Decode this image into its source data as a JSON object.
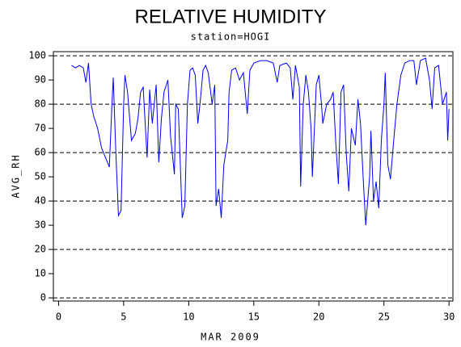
{
  "chart_data": {
    "type": "line",
    "title": "RELATIVE HUMIDITY",
    "subtitle": "station=HOGI",
    "xlabel": "MAR 2009",
    "ylabel": "AVG_RH",
    "xlim": [
      -0.4,
      30.3
    ],
    "ylim": [
      -1.3,
      101.7
    ],
    "xticks": [
      0,
      5,
      10,
      15,
      20,
      25,
      30
    ],
    "yticks": [
      0,
      10,
      20,
      30,
      40,
      50,
      60,
      70,
      80,
      90,
      100
    ],
    "grid_lines": [
      0,
      20,
      40,
      60,
      80,
      100
    ],
    "x": [
      1.0,
      1.3,
      1.6,
      1.9,
      2.1,
      2.3,
      2.5,
      2.7,
      3.0,
      3.3,
      3.6,
      3.9,
      4.1,
      4.2,
      4.4,
      4.6,
      4.8,
      5.0,
      5.1,
      5.3,
      5.6,
      5.9,
      6.1,
      6.3,
      6.5,
      6.8,
      7.0,
      7.2,
      7.5,
      7.7,
      7.9,
      8.1,
      8.4,
      8.6,
      8.9,
      9.0,
      9.2,
      9.5,
      9.7,
      9.9,
      10.1,
      10.3,
      10.5,
      10.7,
      10.9,
      11.1,
      11.3,
      11.5,
      11.8,
      12.0,
      12.1,
      12.3,
      12.5,
      12.7,
      13.0,
      13.1,
      13.3,
      13.6,
      13.9,
      14.2,
      14.5,
      14.7,
      15.0,
      15.5,
      16.0,
      16.5,
      16.8,
      17.0,
      17.5,
      17.8,
      18.0,
      18.2,
      18.5,
      18.6,
      18.8,
      19.0,
      19.2,
      19.4,
      19.5,
      19.8,
      20.0,
      20.2,
      20.3,
      20.6,
      20.9,
      21.1,
      21.3,
      21.5,
      21.7,
      21.9,
      22.1,
      22.3,
      22.5,
      22.8,
      23.0,
      23.2,
      23.4,
      23.6,
      23.9,
      24.0,
      24.2,
      24.4,
      24.6,
      24.8,
      25.0,
      25.1,
      25.3,
      25.5,
      25.8,
      26.0,
      26.3,
      26.6,
      27.0,
      27.3,
      27.5,
      27.8,
      28.2,
      28.5,
      28.7,
      28.9,
      29.2,
      29.5,
      29.8,
      29.9,
      30.0
    ],
    "series": [
      {
        "name": "AVG_RH",
        "color": "#0000ff",
        "values": [
          96,
          95,
          96,
          95,
          89,
          97,
          80,
          75,
          70,
          62,
          58,
          54,
          80,
          91,
          60,
          34,
          36,
          80,
          92,
          85,
          65,
          68,
          74,
          85,
          87,
          58,
          86,
          72,
          88,
          56,
          74,
          85,
          90,
          67,
          51,
          80,
          78,
          33,
          38,
          80,
          94,
          95,
          92,
          72,
          82,
          94,
          96,
          93,
          80,
          88,
          38,
          45,
          33,
          55,
          65,
          85,
          94,
          95,
          90,
          93,
          76,
          94,
          97,
          98,
          98,
          97,
          89,
          96,
          97,
          95,
          82,
          96,
          87,
          46,
          80,
          92,
          85,
          70,
          50,
          88,
          92,
          80,
          72,
          80,
          82,
          85,
          64,
          47,
          85,
          88,
          60,
          44,
          70,
          63,
          82,
          72,
          50,
          30,
          50,
          69,
          40,
          48,
          37,
          65,
          80,
          93,
          55,
          49,
          68,
          80,
          92,
          97,
          98,
          98,
          88,
          98,
          99,
          90,
          78,
          95,
          96,
          80,
          85,
          65,
          78
        ]
      }
    ]
  }
}
